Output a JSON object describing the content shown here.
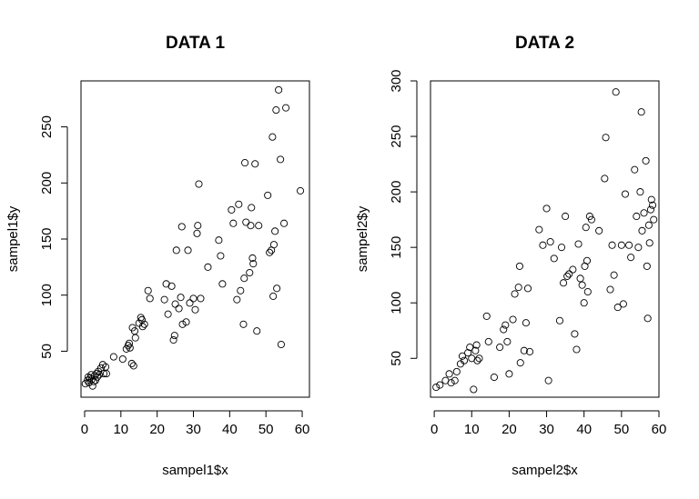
{
  "chart_data": [
    {
      "type": "scatter",
      "title": "DATA 1",
      "xlabel": "sampel1$x",
      "ylabel": "sampel1$y",
      "xlim": [
        -1,
        62
      ],
      "ylim": [
        9,
        291
      ],
      "xticks": [
        0,
        10,
        20,
        30,
        40,
        50,
        60
      ],
      "yticks": [
        50,
        100,
        150,
        200,
        250
      ],
      "points": [
        [
          0.2,
          21
        ],
        [
          0.8,
          24
        ],
        [
          1.0,
          27
        ],
        [
          1.2,
          22
        ],
        [
          1.5,
          26
        ],
        [
          1.8,
          29
        ],
        [
          2.0,
          25
        ],
        [
          2.2,
          19
        ],
        [
          2.5,
          23
        ],
        [
          2.7,
          28
        ],
        [
          3.0,
          24
        ],
        [
          3.2,
          30
        ],
        [
          3.5,
          27
        ],
        [
          3.8,
          32
        ],
        [
          4.0,
          29
        ],
        [
          4.5,
          35
        ],
        [
          5.0,
          38
        ],
        [
          5.3,
          30
        ],
        [
          5.8,
          36
        ],
        [
          6.0,
          30
        ],
        [
          8.0,
          45
        ],
        [
          10.5,
          43
        ],
        [
          11.5,
          52
        ],
        [
          12.0,
          55
        ],
        [
          12.3,
          57
        ],
        [
          12.5,
          53
        ],
        [
          13.0,
          39
        ],
        [
          13.2,
          71
        ],
        [
          13.5,
          37
        ],
        [
          13.8,
          68
        ],
        [
          14.0,
          62
        ],
        [
          15.0,
          75
        ],
        [
          15.5,
          80
        ],
        [
          15.8,
          78
        ],
        [
          16.0,
          72
        ],
        [
          16.5,
          74
        ],
        [
          17.5,
          104
        ],
        [
          18.0,
          97
        ],
        [
          22.0,
          96
        ],
        [
          22.5,
          110
        ],
        [
          23.0,
          83
        ],
        [
          24.0,
          108
        ],
        [
          24.5,
          60
        ],
        [
          24.8,
          64
        ],
        [
          25.0,
          92
        ],
        [
          25.3,
          140
        ],
        [
          26.0,
          88
        ],
        [
          26.5,
          98
        ],
        [
          26.8,
          161
        ],
        [
          27.0,
          74
        ],
        [
          28.0,
          76
        ],
        [
          28.5,
          140
        ],
        [
          29.0,
          93
        ],
        [
          30.0,
          97
        ],
        [
          30.5,
          87
        ],
        [
          31.0,
          155
        ],
        [
          31.2,
          162
        ],
        [
          31.5,
          199
        ],
        [
          32.0,
          97
        ],
        [
          34.0,
          125
        ],
        [
          37.0,
          149
        ],
        [
          37.5,
          135
        ],
        [
          38.0,
          110
        ],
        [
          40.5,
          176
        ],
        [
          41.0,
          164
        ],
        [
          42.0,
          96
        ],
        [
          42.5,
          181
        ],
        [
          43.0,
          104
        ],
        [
          43.8,
          74
        ],
        [
          44.0,
          115
        ],
        [
          44.2,
          218
        ],
        [
          44.5,
          165
        ],
        [
          45.5,
          120
        ],
        [
          45.8,
          162
        ],
        [
          46.0,
          178
        ],
        [
          46.3,
          133
        ],
        [
          46.5,
          128
        ],
        [
          47.0,
          217
        ],
        [
          47.5,
          68
        ],
        [
          48.0,
          162
        ],
        [
          50.5,
          189
        ],
        [
          51.0,
          138
        ],
        [
          51.5,
          140
        ],
        [
          51.8,
          241
        ],
        [
          52.0,
          99
        ],
        [
          52.2,
          145
        ],
        [
          52.5,
          157
        ],
        [
          52.8,
          265
        ],
        [
          53.0,
          106
        ],
        [
          53.5,
          283
        ],
        [
          54.0,
          221
        ],
        [
          54.2,
          56
        ],
        [
          55.0,
          164
        ],
        [
          55.5,
          267
        ],
        [
          59.5,
          193
        ]
      ]
    },
    {
      "type": "scatter",
      "title": "DATA 2",
      "xlabel": "sampel2$x",
      "ylabel": "sampel2$y",
      "xlim": [
        -1,
        60
      ],
      "ylim": [
        15,
        300
      ],
      "xticks": [
        0,
        10,
        20,
        30,
        40,
        50,
        60
      ],
      "yticks": [
        50,
        100,
        150,
        200,
        250,
        300
      ],
      "points": [
        [
          0.5,
          24
        ],
        [
          1.5,
          26
        ],
        [
          3.0,
          30
        ],
        [
          4.0,
          36
        ],
        [
          4.5,
          28
        ],
        [
          5.5,
          30
        ],
        [
          6.0,
          38
        ],
        [
          7.0,
          45
        ],
        [
          7.5,
          52
        ],
        [
          8.0,
          48
        ],
        [
          9.0,
          55
        ],
        [
          9.5,
          60
        ],
        [
          10.0,
          50
        ],
        [
          10.5,
          22
        ],
        [
          11.0,
          57
        ],
        [
          11.3,
          62
        ],
        [
          11.5,
          48
        ],
        [
          12.0,
          50
        ],
        [
          14.0,
          88
        ],
        [
          14.5,
          65
        ],
        [
          16.0,
          33
        ],
        [
          17.5,
          60
        ],
        [
          18.5,
          76
        ],
        [
          19.0,
          80
        ],
        [
          19.5,
          65
        ],
        [
          20.0,
          36
        ],
        [
          21.0,
          85
        ],
        [
          21.5,
          108
        ],
        [
          22.5,
          114
        ],
        [
          22.8,
          133
        ],
        [
          23.0,
          46
        ],
        [
          24.0,
          57
        ],
        [
          24.5,
          82
        ],
        [
          25.0,
          113
        ],
        [
          25.5,
          56
        ],
        [
          28.0,
          166
        ],
        [
          29.0,
          152
        ],
        [
          30.0,
          185
        ],
        [
          30.5,
          30
        ],
        [
          31.0,
          155
        ],
        [
          32.0,
          140
        ],
        [
          33.5,
          84
        ],
        [
          34.0,
          150
        ],
        [
          34.5,
          118
        ],
        [
          35.0,
          178
        ],
        [
          35.5,
          124
        ],
        [
          36.0,
          126
        ],
        [
          37.0,
          130
        ],
        [
          37.5,
          72
        ],
        [
          38.0,
          58
        ],
        [
          38.5,
          153
        ],
        [
          39.0,
          122
        ],
        [
          39.5,
          116
        ],
        [
          40.0,
          100
        ],
        [
          40.2,
          133
        ],
        [
          40.5,
          168
        ],
        [
          40.8,
          138
        ],
        [
          41.0,
          110
        ],
        [
          41.5,
          178
        ],
        [
          42.0,
          175
        ],
        [
          44.0,
          165
        ],
        [
          45.5,
          212
        ],
        [
          45.8,
          249
        ],
        [
          47.0,
          112
        ],
        [
          47.5,
          152
        ],
        [
          48.0,
          125
        ],
        [
          48.5,
          290
        ],
        [
          49.0,
          96
        ],
        [
          50.0,
          152
        ],
        [
          50.5,
          99
        ],
        [
          51.0,
          198
        ],
        [
          52.0,
          152
        ],
        [
          52.5,
          141
        ],
        [
          53.5,
          220
        ],
        [
          54.0,
          178
        ],
        [
          54.5,
          150
        ],
        [
          55.0,
          200
        ],
        [
          55.3,
          272
        ],
        [
          55.5,
          165
        ],
        [
          56.0,
          181
        ],
        [
          56.5,
          228
        ],
        [
          56.8,
          133
        ],
        [
          57.0,
          86
        ],
        [
          57.3,
          170
        ],
        [
          57.5,
          154
        ],
        [
          57.8,
          184
        ],
        [
          58.0,
          193
        ],
        [
          58.3,
          188
        ],
        [
          58.6,
          175
        ]
      ]
    }
  ]
}
